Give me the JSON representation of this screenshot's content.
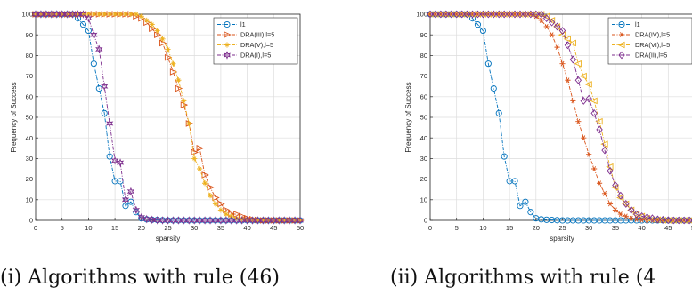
{
  "captions": [
    "(i) Algorithms with rule (46)",
    "(ii) Algorithms with rule (4"
  ],
  "chart_data": [
    {
      "type": "line",
      "title": "",
      "xlabel": "sparsity",
      "ylabel": "Frequency of Success",
      "xlim": [
        0,
        50
      ],
      "ylim": [
        0,
        100
      ],
      "xticks": [
        0,
        5,
        10,
        15,
        20,
        25,
        30,
        35,
        40,
        45,
        50
      ],
      "yticks": [
        0,
        10,
        20,
        30,
        40,
        50,
        60,
        70,
        80,
        90,
        100
      ],
      "grid": true,
      "legend_position": "top-right",
      "x": [
        0,
        1,
        2,
        3,
        4,
        5,
        6,
        7,
        8,
        9,
        10,
        11,
        12,
        13,
        14,
        15,
        16,
        17,
        18,
        19,
        20,
        21,
        22,
        23,
        24,
        25,
        26,
        27,
        28,
        29,
        30,
        31,
        32,
        33,
        34,
        35,
        36,
        37,
        38,
        39,
        40,
        41,
        42,
        43,
        44,
        45,
        46,
        47,
        48,
        49,
        50
      ],
      "series": [
        {
          "name": "l1",
          "color": "#0072bd",
          "marker": "circle",
          "values": [
            100,
            100,
            100,
            100,
            100,
            100,
            100,
            100,
            98,
            95,
            92,
            76,
            64,
            52,
            31,
            19,
            19,
            7,
            9,
            4,
            1,
            0.5,
            0.3,
            0.2,
            0.1,
            0,
            0,
            0,
            0,
            0,
            0,
            0,
            0,
            0,
            0,
            0,
            0,
            0,
            0,
            0,
            0,
            0,
            0,
            0,
            0,
            0,
            0,
            0,
            0,
            0,
            0
          ]
        },
        {
          "name": "DRA(III),l=5",
          "color": "#d95319",
          "marker": "triangle-right",
          "values": [
            100,
            100,
            100,
            100,
            100,
            100,
            100,
            100,
            100,
            100,
            100,
            100,
            100,
            100,
            100,
            100,
            100,
            100,
            100,
            99,
            98,
            96,
            93,
            90,
            86,
            79,
            72,
            64,
            56,
            47,
            33,
            35,
            22,
            16,
            11,
            8,
            5,
            3,
            3,
            2,
            1,
            0.5,
            0.2,
            0,
            0,
            0,
            0,
            0,
            0,
            0,
            0
          ]
        },
        {
          "name": "DRA(V),l=5",
          "color": "#edb120",
          "marker": "star",
          "values": [
            100,
            100,
            100,
            100,
            100,
            100,
            100,
            100,
            100,
            100,
            100,
            100,
            100,
            100,
            100,
            100,
            100,
            100,
            100,
            100,
            99,
            97,
            95,
            92,
            88,
            83,
            76,
            68,
            58,
            47,
            30,
            25,
            18,
            12,
            8,
            5,
            3,
            2,
            1,
            0.5,
            0.2,
            0,
            0,
            0,
            0,
            0,
            0,
            0,
            0,
            0,
            0
          ]
        },
        {
          "name": "DRA(I),l=5",
          "color": "#7e2f8e",
          "marker": "hexagram",
          "values": [
            100,
            100,
            100,
            100,
            100,
            100,
            100,
            100,
            100,
            100,
            98,
            90,
            83,
            65,
            47,
            29,
            28,
            10,
            14,
            5,
            1.5,
            0.6,
            0.3,
            0.1,
            0,
            0,
            0,
            0,
            0,
            0,
            0,
            0,
            0,
            0,
            0,
            0,
            0,
            0,
            0,
            0,
            0,
            0,
            0,
            0,
            0,
            0,
            0,
            0,
            0,
            0,
            0
          ]
        }
      ]
    },
    {
      "type": "line",
      "title": "",
      "xlabel": "sparsity",
      "ylabel": "Frequency of Success",
      "xlim": [
        0,
        50
      ],
      "ylim": [
        0,
        100
      ],
      "xticks": [
        0,
        5,
        10,
        15,
        20,
        25,
        30,
        35,
        40,
        45,
        50
      ],
      "yticks": [
        0,
        10,
        20,
        30,
        40,
        50,
        60,
        70,
        80,
        90,
        100
      ],
      "grid": true,
      "legend_position": "top-right",
      "x": [
        0,
        1,
        2,
        3,
        4,
        5,
        6,
        7,
        8,
        9,
        10,
        11,
        12,
        13,
        14,
        15,
        16,
        17,
        18,
        19,
        20,
        21,
        22,
        23,
        24,
        25,
        26,
        27,
        28,
        29,
        30,
        31,
        32,
        33,
        34,
        35,
        36,
        37,
        38,
        39,
        40,
        41,
        42,
        43,
        44,
        45,
        46,
        47,
        48,
        49,
        50
      ],
      "series": [
        {
          "name": "l1",
          "color": "#0072bd",
          "marker": "circle",
          "values": [
            100,
            100,
            100,
            100,
            100,
            100,
            100,
            100,
            98,
            95,
            92,
            76,
            64,
            52,
            31,
            19,
            19,
            7,
            9,
            4,
            1,
            0.5,
            0.3,
            0.2,
            0.1,
            0,
            0,
            0,
            0,
            0,
            0,
            0,
            0,
            0,
            0,
            0,
            0,
            0,
            0,
            0,
            0,
            0,
            0,
            0,
            0,
            0,
            0,
            0,
            0,
            0,
            0
          ]
        },
        {
          "name": "DRA(IV),l=5",
          "color": "#d95319",
          "marker": "asterisk",
          "values": [
            100,
            100,
            100,
            100,
            100,
            100,
            100,
            100,
            100,
            100,
            100,
            100,
            100,
            100,
            100,
            100,
            100,
            100,
            100,
            100,
            99,
            97,
            94,
            90,
            84,
            76,
            68,
            58,
            48,
            40,
            32,
            25,
            18,
            13,
            8,
            5,
            3,
            2,
            1,
            0.5,
            0.2,
            0,
            0,
            0,
            0,
            0,
            0,
            0,
            0,
            0,
            0
          ]
        },
        {
          "name": "DRA(VI),l=5",
          "color": "#edb120",
          "marker": "triangle-left",
          "values": [
            100,
            100,
            100,
            100,
            100,
            100,
            100,
            100,
            100,
            100,
            100,
            100,
            100,
            100,
            100,
            100,
            100,
            100,
            100,
            100,
            100,
            100,
            99,
            97,
            94,
            90,
            88,
            86,
            76,
            70,
            66,
            58,
            48,
            37,
            26,
            16,
            11,
            8,
            5,
            3,
            2,
            1,
            0.5,
            0.3,
            0.1,
            0,
            0,
            0,
            0,
            0,
            0
          ]
        },
        {
          "name": "DRA(II),l=5",
          "color": "#7e2f8e",
          "marker": "diamond",
          "values": [
            100,
            100,
            100,
            100,
            100,
            100,
            100,
            100,
            100,
            100,
            100,
            100,
            100,
            100,
            100,
            100,
            100,
            100,
            100,
            100,
            100,
            100,
            98,
            96,
            94,
            92,
            85,
            78,
            68,
            58,
            59,
            52,
            44,
            34,
            24,
            17,
            12,
            8,
            5,
            3,
            2,
            1.5,
            1,
            0.5,
            0.3,
            0.1,
            0,
            0,
            0,
            0,
            0
          ]
        }
      ]
    }
  ]
}
